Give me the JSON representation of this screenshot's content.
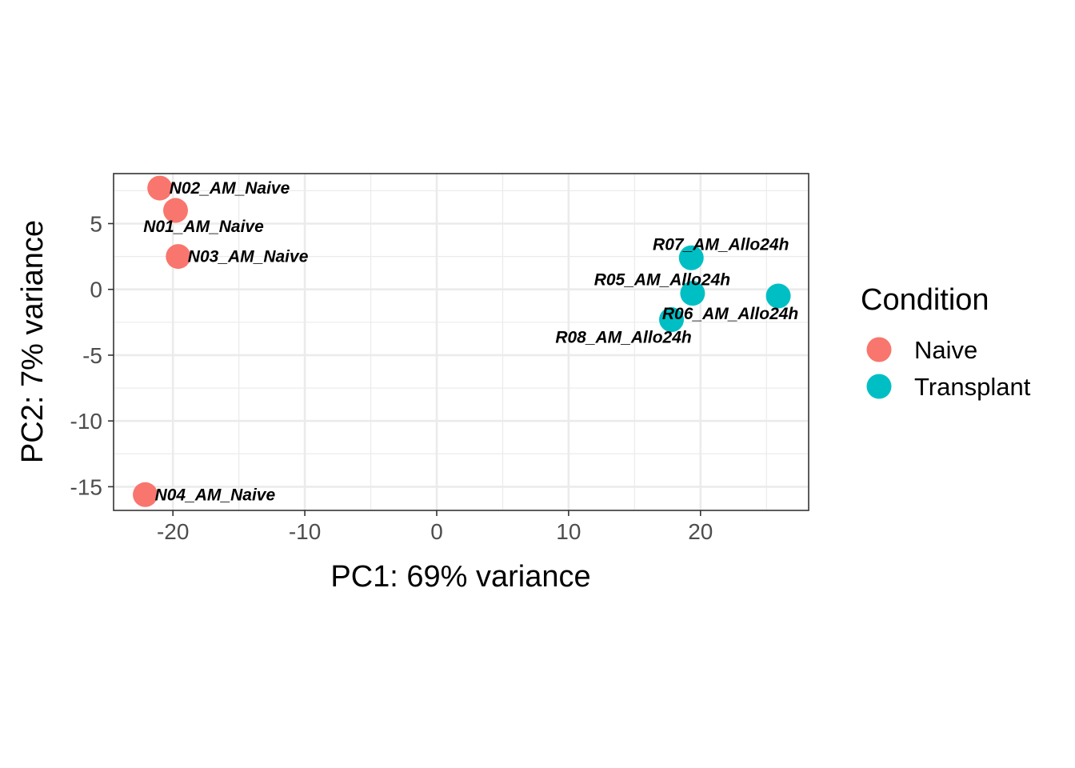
{
  "chart_data": {
    "type": "scatter",
    "title": "",
    "xlabel": "PC1: 69% variance",
    "ylabel": "PC2: 7% variance",
    "xlim": [
      -24.5,
      28.2
    ],
    "ylim": [
      -16.8,
      8.8
    ],
    "x_ticks": [
      -20,
      -10,
      0,
      10,
      20
    ],
    "y_ticks": [
      -15,
      -10,
      -5,
      0,
      5
    ],
    "x_tick_labels": [
      "-20",
      "-10",
      "0",
      "10",
      "20"
    ],
    "y_tick_labels": [
      "-15",
      "-10",
      "-5",
      "0",
      "5"
    ],
    "grid": true,
    "legend": {
      "title": "Condition",
      "placement": "right",
      "items": [
        {
          "label": "Naive",
          "color": "#F8766D"
        },
        {
          "label": "Transplant",
          "color": "#00BFC4"
        }
      ]
    },
    "points": [
      {
        "label": "N02_AM_Naive",
        "x": -21.0,
        "y": 7.7,
        "group": "Naive",
        "label_anchor": "right"
      },
      {
        "label": "N01_AM_Naive",
        "x": -19.8,
        "y": 6.0,
        "group": "Naive",
        "label_anchor": "below"
      },
      {
        "label": "N03_AM_Naive",
        "x": -19.6,
        "y": 2.5,
        "group": "Naive",
        "label_anchor": "right"
      },
      {
        "label": "N04_AM_Naive",
        "x": -22.1,
        "y": -15.6,
        "group": "Naive",
        "label_anchor": "right"
      },
      {
        "label": "R07_AM_Allo24h",
        "x": 19.3,
        "y": 2.4,
        "group": "Transplant",
        "label_anchor": "above"
      },
      {
        "label": "R05_AM_Allo24h",
        "x": 19.4,
        "y": -0.3,
        "group": "Transplant",
        "label_anchor": "above-left"
      },
      {
        "label": "R06_AM_Allo24h",
        "x": 25.9,
        "y": -0.5,
        "group": "Transplant",
        "label_anchor": "below-left"
      },
      {
        "label": "R08_AM_Allo24h",
        "x": 17.8,
        "y": -2.3,
        "group": "Transplant",
        "label_anchor": "below-left"
      }
    ],
    "colors": {
      "Naive": "#F8766D",
      "Transplant": "#00BFC4"
    }
  }
}
